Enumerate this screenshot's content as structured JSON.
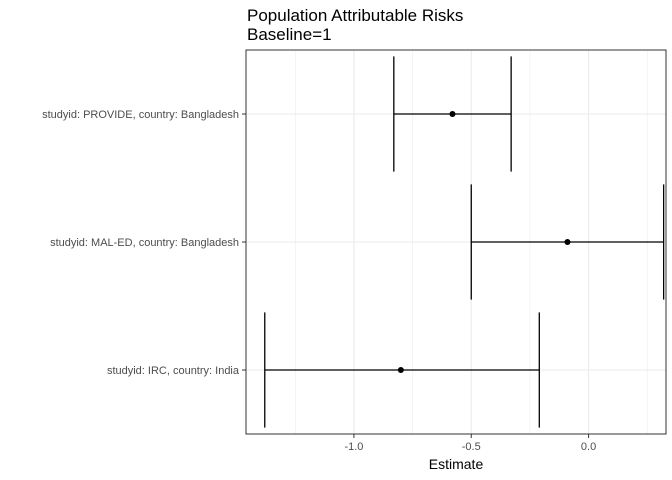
{
  "chart_data": {
    "type": "errorbar",
    "title": "Population Attributable Risks",
    "subtitle": "Baseline=1",
    "xlabel": "Estimate",
    "ylabel": "",
    "xlim": [
      -1.46,
      0.33
    ],
    "x_ticks": [
      -1.0,
      -0.5,
      0.0
    ],
    "x_tick_labels": [
      "-1.0",
      "-0.5",
      "0.0"
    ],
    "categories": [
      "studyid: PROVIDE, country: Bangladesh",
      "studyid: MAL-ED, country: Bangladesh",
      "studyid: IRC, country: India"
    ],
    "estimates": [
      -0.58,
      -0.09,
      -0.8
    ],
    "lower": [
      -0.83,
      -0.5,
      -1.38
    ],
    "upper": [
      -0.33,
      0.32,
      -0.21
    ],
    "grid": true,
    "theme": "bw",
    "colors": {
      "point": "#000000",
      "errorbar": "#000000",
      "grid": "#ebebeb",
      "panel_border": "#333333"
    }
  }
}
